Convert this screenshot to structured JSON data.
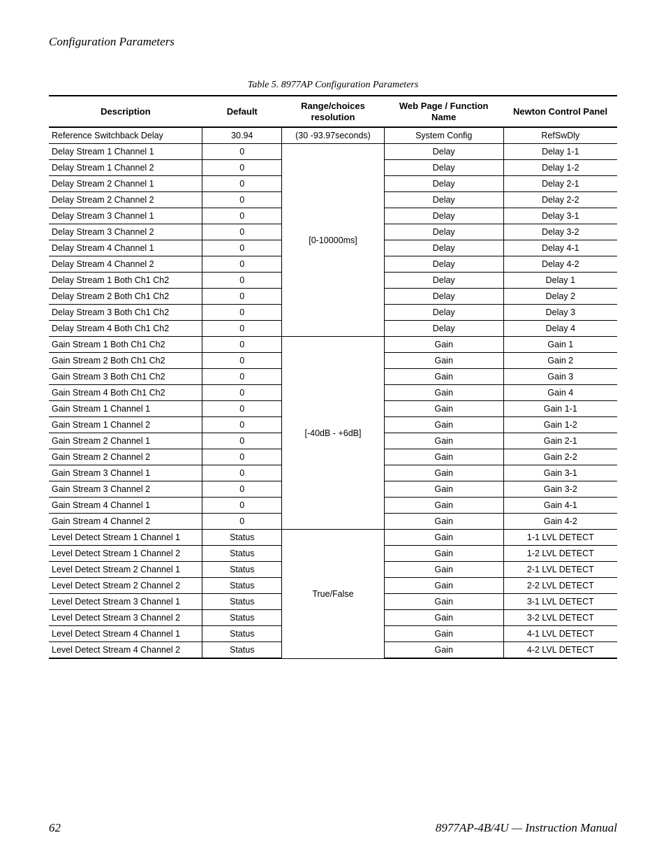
{
  "page": {
    "section_title": "Configuration Parameters",
    "table_caption": "Table 5.  8977AP Configuration Parameters",
    "page_number": "62",
    "manual_title": "8977AP-4B/4U  —  Instruction Manual"
  },
  "table": {
    "columns": [
      "Description",
      "Default",
      "Range/choices resolution",
      "Web Page / Function Name",
      "Newton Control Panel"
    ],
    "col_widths_pct": [
      27,
      14,
      18,
      21,
      20
    ],
    "font_size_body": 12.5,
    "font_size_header": 13,
    "border_color": "#000000",
    "rows": [
      {
        "desc": "Reference Switchback Delay",
        "def": "30.94",
        "rng": "(30 -93.97seconds)",
        "web": "System Config",
        "newton": "RefSwDly",
        "rng_span": 1
      },
      {
        "desc": "Delay Stream 1 Channel 1",
        "def": "0",
        "rng": "[0-10000ms]",
        "web": "Delay",
        "newton": "Delay 1-1",
        "rng_span": 12
      },
      {
        "desc": "Delay Stream 1 Channel 2",
        "def": "0",
        "rng": null,
        "web": "Delay",
        "newton": "Delay 1-2",
        "rng_span": 0
      },
      {
        "desc": "Delay Stream 2 Channel 1",
        "def": "0",
        "rng": null,
        "web": "Delay",
        "newton": "Delay 2-1",
        "rng_span": 0
      },
      {
        "desc": "Delay Stream 2 Channel 2",
        "def": "0",
        "rng": null,
        "web": "Delay",
        "newton": "Delay 2-2",
        "rng_span": 0
      },
      {
        "desc": "Delay Stream 3 Channel 1",
        "def": "0",
        "rng": null,
        "web": "Delay",
        "newton": "Delay 3-1",
        "rng_span": 0
      },
      {
        "desc": "Delay Stream 3 Channel 2",
        "def": "0",
        "rng": null,
        "web": "Delay",
        "newton": "Delay 3-2",
        "rng_span": 0
      },
      {
        "desc": "Delay Stream 4 Channel 1",
        "def": "0",
        "rng": null,
        "web": "Delay",
        "newton": "Delay 4-1",
        "rng_span": 0
      },
      {
        "desc": "Delay Stream 4 Channel 2",
        "def": "0",
        "rng": null,
        "web": "Delay",
        "newton": "Delay 4-2",
        "rng_span": 0
      },
      {
        "desc": "Delay Stream 1 Both Ch1 Ch2",
        "def": "0",
        "rng": null,
        "web": "Delay",
        "newton": "Delay 1",
        "rng_span": 0
      },
      {
        "desc": "Delay Stream 2 Both Ch1 Ch2",
        "def": "0",
        "rng": null,
        "web": "Delay",
        "newton": "Delay 2",
        "rng_span": 0
      },
      {
        "desc": "Delay Stream 3 Both Ch1 Ch2",
        "def": "0",
        "rng": null,
        "web": "Delay",
        "newton": "Delay 3",
        "rng_span": 0
      },
      {
        "desc": "Delay Stream 4 Both Ch1 Ch2",
        "def": "0",
        "rng": null,
        "web": "Delay",
        "newton": "Delay 4",
        "rng_span": 0
      },
      {
        "desc": "Gain Stream 1 Both Ch1 Ch2",
        "def": "0",
        "rng": "[-40dB - +6dB]",
        "web": "Gain",
        "newton": "Gain 1",
        "rng_span": 12
      },
      {
        "desc": "Gain Stream 2 Both Ch1 Ch2",
        "def": "0",
        "rng": null,
        "web": "Gain",
        "newton": "Gain 2",
        "rng_span": 0
      },
      {
        "desc": "Gain Stream 3 Both Ch1 Ch2",
        "def": "0",
        "rng": null,
        "web": "Gain",
        "newton": "Gain 3",
        "rng_span": 0
      },
      {
        "desc": "Gain Stream 4 Both Ch1 Ch2",
        "def": "0",
        "rng": null,
        "web": "Gain",
        "newton": "Gain 4",
        "rng_span": 0
      },
      {
        "desc": "Gain Stream 1 Channel 1",
        "def": "0",
        "rng": null,
        "web": "Gain",
        "newton": "Gain 1-1",
        "rng_span": 0
      },
      {
        "desc": "Gain Stream 1 Channel 2",
        "def": "0",
        "rng": null,
        "web": "Gain",
        "newton": "Gain 1-2",
        "rng_span": 0
      },
      {
        "desc": "Gain Stream 2 Channel 1",
        "def": "0",
        "rng": null,
        "web": "Gain",
        "newton": "Gain 2-1",
        "rng_span": 0
      },
      {
        "desc": "Gain Stream 2 Channel 2",
        "def": "0",
        "rng": null,
        "web": "Gain",
        "newton": "Gain 2-2",
        "rng_span": 0
      },
      {
        "desc": "Gain Stream 3 Channel 1",
        "def": "0",
        "rng": null,
        "web": "Gain",
        "newton": "Gain 3-1",
        "rng_span": 0
      },
      {
        "desc": "Gain Stream 3 Channel 2",
        "def": "0",
        "rng": null,
        "web": "Gain",
        "newton": "Gain 3-2",
        "rng_span": 0
      },
      {
        "desc": "Gain Stream 4 Channel 1",
        "def": "0",
        "rng": null,
        "web": "Gain",
        "newton": "Gain 4-1",
        "rng_span": 0
      },
      {
        "desc": "Gain Stream 4 Channel 2",
        "def": "0",
        "rng": null,
        "web": "Gain",
        "newton": "Gain 4-2",
        "rng_span": 0
      },
      {
        "desc": "Level Detect Stream 1 Channel 1",
        "def": "Status",
        "rng": "True/False",
        "web": "Gain",
        "newton": "1-1 LVL DETECT",
        "rng_span": 8
      },
      {
        "desc": "Level Detect Stream 1 Channel 2",
        "def": "Status",
        "rng": null,
        "web": "Gain",
        "newton": "1-2 LVL DETECT",
        "rng_span": 0
      },
      {
        "desc": "Level Detect Stream 2 Channel 1",
        "def": "Status",
        "rng": null,
        "web": "Gain",
        "newton": "2-1 LVL DETECT",
        "rng_span": 0
      },
      {
        "desc": "Level Detect Stream 2 Channel 2",
        "def": "Status",
        "rng": null,
        "web": "Gain",
        "newton": "2-2 LVL DETECT",
        "rng_span": 0
      },
      {
        "desc": "Level Detect Stream 3 Channel 1",
        "def": "Status",
        "rng": null,
        "web": "Gain",
        "newton": "3-1 LVL DETECT",
        "rng_span": 0
      },
      {
        "desc": "Level Detect Stream 3 Channel 2",
        "def": "Status",
        "rng": null,
        "web": "Gain",
        "newton": "3-2 LVL DETECT",
        "rng_span": 0
      },
      {
        "desc": "Level Detect Stream 4 Channel 1",
        "def": "Status",
        "rng": null,
        "web": "Gain",
        "newton": "4-1 LVL DETECT",
        "rng_span": 0
      },
      {
        "desc": "Level Detect Stream 4 Channel 2",
        "def": "Status",
        "rng": null,
        "web": "Gain",
        "newton": "4-2 LVL DETECT",
        "rng_span": 0
      }
    ]
  }
}
